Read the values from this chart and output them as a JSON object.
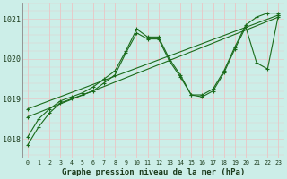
{
  "bg_color": "#cceee8",
  "grid_minor_color": "#e8c8c8",
  "grid_major_color": "#c8a8a8",
  "line_color": "#1a6b1a",
  "xlabel": "Graphe pression niveau de la mer (hPa)",
  "ylim": [
    1017.5,
    1021.4
  ],
  "xlim": [
    -0.5,
    23.5
  ],
  "yticks": [
    1018,
    1019,
    1020,
    1021
  ],
  "xticks": [
    0,
    1,
    2,
    3,
    4,
    5,
    6,
    7,
    8,
    9,
    10,
    11,
    12,
    13,
    14,
    15,
    16,
    17,
    18,
    19,
    20,
    21,
    22,
    23
  ],
  "series": [
    {
      "x": [
        0,
        1,
        2,
        3,
        4,
        5,
        6,
        7,
        8,
        9,
        10,
        11,
        12,
        13,
        14,
        15,
        16,
        17,
        18,
        19,
        20,
        21,
        22,
        23
      ],
      "y": [
        1018.05,
        1018.5,
        1018.75,
        1018.95,
        1019.05,
        1019.15,
        1019.3,
        1019.5,
        1019.7,
        1020.2,
        1020.75,
        1020.55,
        1020.55,
        1020.0,
        1019.6,
        1019.1,
        1019.1,
        1019.25,
        1019.7,
        1020.3,
        1020.85,
        1021.05,
        1021.15,
        1021.15
      ]
    },
    {
      "x": [
        0,
        23
      ],
      "y": [
        1018.55,
        1021.05
      ]
    },
    {
      "x": [
        0,
        23
      ],
      "y": [
        1018.75,
        1021.1
      ]
    },
    {
      "x": [
        0,
        1,
        2,
        3,
        4,
        5,
        6,
        7,
        8,
        9,
        10,
        11,
        12,
        13,
        14,
        15,
        16,
        17,
        18,
        19,
        20,
        21,
        22,
        23
      ],
      "y": [
        1017.85,
        1018.3,
        1018.65,
        1018.9,
        1019.0,
        1019.1,
        1019.2,
        1019.4,
        1019.6,
        1020.15,
        1020.65,
        1020.5,
        1020.5,
        1019.95,
        1019.55,
        1019.1,
        1019.05,
        1019.2,
        1019.65,
        1020.25,
        1020.8,
        1019.9,
        1019.75,
        1021.1
      ]
    }
  ]
}
